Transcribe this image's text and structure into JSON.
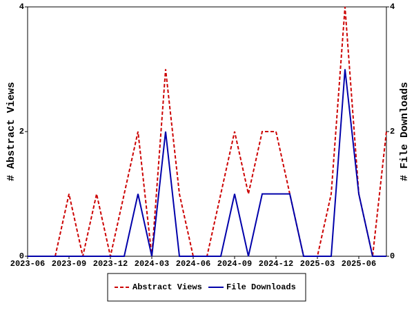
{
  "chart_data": {
    "type": "line",
    "ylabel": "# Abstract Views",
    "y2label": "# File Downloads",
    "categories": [
      "2023-06",
      null,
      null,
      "2023-09",
      null,
      null,
      "2023-12",
      null,
      null,
      "2024-03",
      null,
      null,
      "2024-06",
      null,
      null,
      "2024-09",
      null,
      null,
      "2024-12",
      null,
      null,
      "2025-03",
      null,
      null,
      "2025-06",
      null,
      null
    ],
    "series": [
      {
        "name": "Abstract Views",
        "color": "#cc0000",
        "dashed": true,
        "values": [
          0,
          0,
          0,
          1,
          0,
          1,
          0,
          1,
          2,
          0,
          3,
          1,
          0,
          0,
          1,
          2,
          1,
          2,
          2,
          1,
          0,
          0,
          1,
          4,
          1,
          0,
          2
        ]
      },
      {
        "name": "File Downloads",
        "color": "#0000aa",
        "dashed": false,
        "axis": "y2",
        "values": [
          0,
          0,
          0,
          0,
          0,
          0,
          0,
          0,
          1,
          0,
          2,
          0,
          0,
          0,
          0,
          1,
          0,
          1,
          1,
          1,
          0,
          0,
          0,
          3,
          1,
          0,
          0
        ]
      }
    ],
    "ylim": [
      0,
      4
    ],
    "yticks": [
      0,
      2,
      4
    ],
    "y2lim": [
      0,
      4
    ],
    "y2ticks": [
      0,
      2,
      4
    ],
    "legend": "bottom"
  }
}
